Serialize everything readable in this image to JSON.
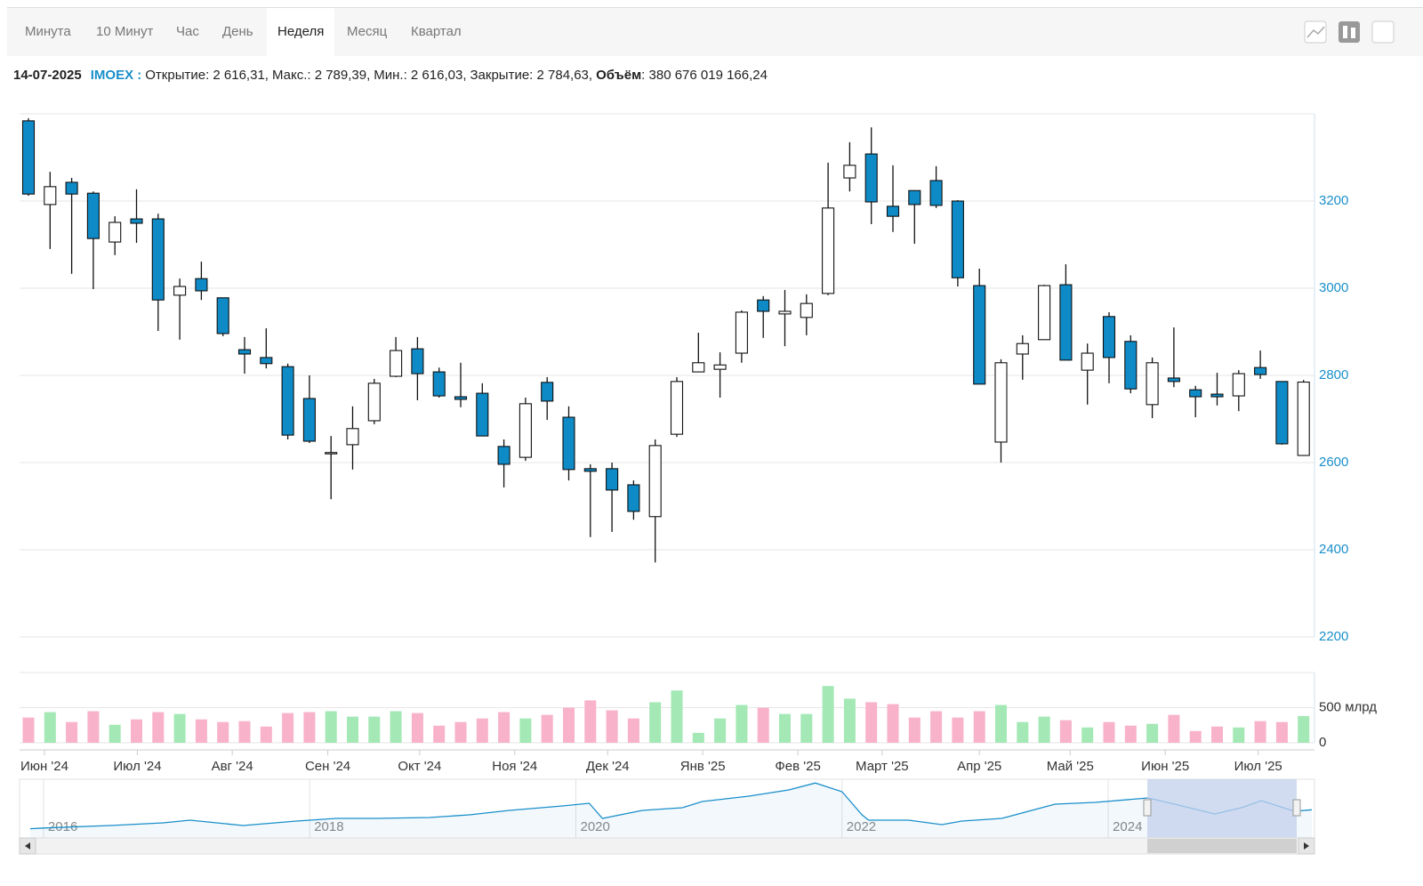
{
  "tabs": [
    "Минута",
    "10 Минут",
    "Час",
    "День",
    "Неделя",
    "Месяц",
    "Квартал"
  ],
  "active_tab": "Неделя",
  "info": {
    "date": "14-07-2025",
    "ticker": "IMOEX :",
    "items": [
      "Открытие: 2 616,31,",
      "Макс.: 2 789,39,",
      "Мин.: 2 616,03,",
      "Закрытие: 2 784,63,"
    ],
    "volume_label": "Объём",
    "volume_value": ": 380 676 019 166,24"
  },
  "chart_data": [
    {
      "type": "candlestick",
      "up_color": "#ffffff",
      "down_color": "#0e8ac7",
      "open": [
        3384,
        3192,
        3243,
        3218,
        3106,
        3159,
        3159,
        2984,
        3022,
        2978,
        2859,
        2841,
        2820,
        2747,
        2620,
        2641,
        2696,
        2798,
        2861,
        2808,
        2751,
        2759,
        2637,
        2612,
        2784,
        2704,
        2586,
        2586,
        2549,
        2476,
        2665,
        2808,
        2814,
        2851,
        2973,
        2941,
        2933,
        2988,
        3253,
        3308,
        3188,
        3224,
        3247,
        3200,
        3006,
        2647,
        2849,
        2882,
        3008,
        2812,
        2935,
        2878,
        2733,
        2794,
        2767,
        2757,
        2753,
        2818,
        2786,
        2616.31
      ],
      "high": [
        3390,
        3267,
        3253,
        3222,
        3165,
        3227,
        3171,
        3022,
        3061,
        2978,
        2888,
        2908,
        2827,
        2800,
        2661,
        2729,
        2792,
        2888,
        2888,
        2818,
        2829,
        2782,
        2653,
        2749,
        2796,
        2729,
        2596,
        2600,
        2559,
        2653,
        2796,
        2898,
        2853,
        2949,
        2982,
        2996,
        2986,
        3288,
        3335,
        3369,
        3282,
        3224,
        3280,
        3202,
        3045,
        2837,
        2892,
        3008,
        3055,
        2873,
        2945,
        2892,
        2841,
        2910,
        2776,
        2806,
        2812,
        2857,
        2786,
        2789.39
      ],
      "low": [
        3212,
        3090,
        3033,
        2998,
        3076,
        3104,
        2902,
        2882,
        2973,
        2890,
        2804,
        2816,
        2653,
        2645,
        2516,
        2584,
        2688,
        2796,
        2743,
        2749,
        2727,
        2661,
        2543,
        2604,
        2698,
        2559,
        2429,
        2441,
        2469,
        2371,
        2659,
        2808,
        2749,
        2829,
        2886,
        2867,
        2892,
        2984,
        3222,
        3147,
        3129,
        3102,
        3184,
        3004,
        2780,
        2600,
        2790,
        2882,
        2835,
        2733,
        2782,
        2759,
        2702,
        2773,
        2704,
        2731,
        2718,
        2792,
        2641,
        2616.03
      ],
      "close": [
        3216,
        3233,
        3216,
        3114,
        3151,
        3149,
        2973,
        3004,
        2994,
        2896,
        2849,
        2827,
        2663,
        2649,
        2623,
        2678,
        2782,
        2857,
        2804,
        2753,
        2745,
        2661,
        2596,
        2735,
        2741,
        2584,
        2580,
        2537,
        2488,
        2639,
        2786,
        2829,
        2824,
        2945,
        2947,
        2947,
        2965,
        3184,
        3282,
        3198,
        3165,
        3192,
        3190,
        3024,
        2780,
        2829,
        2873,
        3006,
        2835,
        2851,
        2841,
        2769,
        2829,
        2786,
        2751,
        2751,
        2804,
        2802,
        2643,
        2784.63
      ],
      "ylim": [
        2200,
        3400
      ],
      "yticks": [
        2200,
        2400,
        2600,
        2800,
        3000,
        3200
      ],
      "xticks": [
        {
          "value": 0.74,
          "label": "Июн '24"
        },
        {
          "value": 5.04,
          "label": "Июл '24"
        },
        {
          "value": 9.43,
          "label": "Авг '24"
        },
        {
          "value": 13.85,
          "label": "Сен '24"
        },
        {
          "value": 18.1,
          "label": "Окт '24"
        },
        {
          "value": 22.5,
          "label": "Ноя '24"
        },
        {
          "value": 26.8,
          "label": "Дек '24"
        },
        {
          "value": 31.2,
          "label": "Янв '25"
        },
        {
          "value": 35.6,
          "label": "Фев '25"
        },
        {
          "value": 39.5,
          "label": "Март '25"
        },
        {
          "value": 44.0,
          "label": "Апр '25"
        },
        {
          "value": 48.2,
          "label": "Май '25"
        },
        {
          "value": 52.6,
          "label": "Июн '25"
        },
        {
          "value": 56.9,
          "label": "Июл '25"
        }
      ],
      "grid": true
    },
    {
      "type": "bar",
      "up_color": "#a3e8b5",
      "down_color": "#f8b2c9",
      "values": [
        359,
        436,
        295,
        449,
        256,
        333,
        436,
        410,
        333,
        295,
        308,
        231,
        423,
        436,
        449,
        372,
        372,
        449,
        423,
        244,
        295,
        346,
        436,
        346,
        397,
        500,
        603,
        462,
        346,
        577,
        744,
        141,
        346,
        538,
        500,
        410,
        410,
        808,
        628,
        577,
        551,
        359,
        449,
        359,
        449,
        538,
        295,
        372,
        321,
        218,
        295,
        244,
        269,
        397,
        167,
        231,
        218,
        308,
        295,
        380.68
      ],
      "ylim": [
        0,
        1000
      ],
      "yticks": [
        0,
        {
          "value": 500,
          "label": "500 млрд"
        }
      ],
      "grid": true
    },
    {
      "type": "line",
      "color": "#1a8fca",
      "x": [
        2015.9,
        2016.0,
        2016.5,
        2016.9,
        2017.1,
        2017.5,
        2017.9,
        2018.2,
        2018.5,
        2018.9,
        2019.2,
        2019.5,
        2019.9,
        2020.1,
        2020.2,
        2020.5,
        2020.8,
        2020.95,
        2021.3,
        2021.6,
        2021.8,
        2022.0,
        2022.15,
        2022.2,
        2022.5,
        2022.75,
        2022.9,
        2023.2,
        2023.6,
        2023.9,
        2024.3,
        2024.5,
        2024.8,
        2025.0,
        2025.15,
        2025.4,
        2025.53
      ],
      "values": [
        1720,
        1760,
        1900,
        2050,
        2200,
        1900,
        2150,
        2300,
        2300,
        2350,
        2500,
        2750,
        3000,
        3150,
        2300,
        2750,
        2900,
        3250,
        3550,
        3900,
        4290,
        3800,
        2500,
        2200,
        2200,
        1950,
        2150,
        2300,
        3100,
        3200,
        3450,
        3100,
        2550,
        2900,
        3300,
        2700,
        2784
      ],
      "xlim": [
        2015.82,
        2025.55
      ],
      "ylim": [
        1200,
        4500
      ],
      "xticks": [
        2016,
        2018,
        2020,
        2022,
        2024
      ]
    }
  ]
}
